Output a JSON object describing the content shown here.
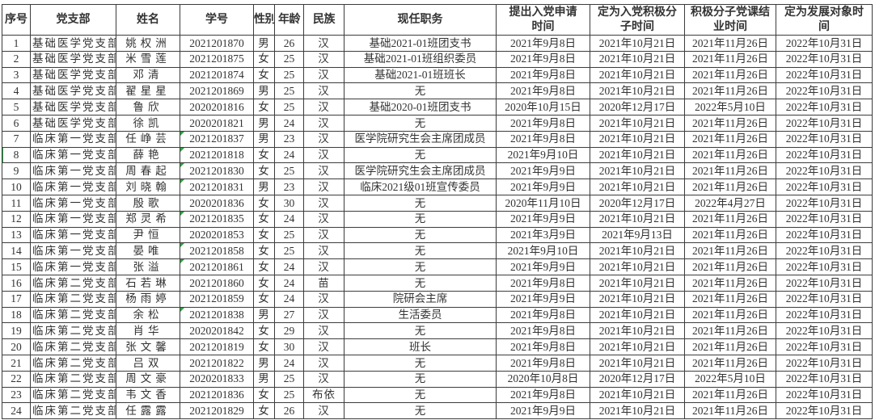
{
  "colors": {
    "border": "#3c3c3c",
    "text": "#333333",
    "indicator_green": "#2f9e44",
    "background": "#ffffff"
  },
  "table": {
    "columns": [
      {
        "key": "index",
        "label": "序号"
      },
      {
        "key": "branch",
        "label": "党支部"
      },
      {
        "key": "name",
        "label": "姓名"
      },
      {
        "key": "student_id",
        "label": "学号"
      },
      {
        "key": "gender",
        "label": "性别"
      },
      {
        "key": "age",
        "label": "年龄"
      },
      {
        "key": "ethnicity",
        "label": "民族"
      },
      {
        "key": "position",
        "label": "现任职务"
      },
      {
        "key": "apply_date",
        "label": "提出入党申请\n时间"
      },
      {
        "key": "activist_date",
        "label": "定为入党积极分\n子时间"
      },
      {
        "key": "course_date",
        "label": "积极分子党课结\n业时间"
      },
      {
        "key": "candidate_date",
        "label": "定为发展对象时\n间"
      }
    ],
    "rows": [
      [
        "1",
        "基础医学党支部",
        "姚权洲",
        "2021201870",
        "男",
        "26",
        "汉",
        "基础2021-01班团支书",
        "2021年9月8日",
        "2021年10月21日",
        "2021年11月26日",
        "2022年10月31日"
      ],
      [
        "2",
        "基础医学党支部",
        "米雪莲",
        "2021201875",
        "女",
        "25",
        "汉",
        "基础2021-01班组织委员",
        "2021年9月8日",
        "2021年10月21日",
        "2021年11月26日",
        "2022年10月31日"
      ],
      [
        "3",
        "基础医学党支部",
        "邓清",
        "2021201874",
        "女",
        "25",
        "汉",
        "基础2021-01班班长",
        "2021年9月8日",
        "2021年10月21日",
        "2021年11月26日",
        "2022年10月31日"
      ],
      [
        "4",
        "基础医学党支部",
        "翟星星",
        "2021201869",
        "男",
        "25",
        "汉",
        "无",
        "2021年9月8日",
        "2021年10月21日",
        "2021年11月26日",
        "2022年10月31日"
      ],
      [
        "5",
        "基础医学党支部",
        "鲁欣",
        "2020201816",
        "女",
        "25",
        "汉",
        "基础2020-01班团支书",
        "2020年10月15日",
        "2020年12月17日",
        "2022年5月10日",
        "2022年10月31日"
      ],
      [
        "6",
        "基础医学党支部",
        "徐凯",
        "2020201821",
        "男",
        "24",
        "汉",
        "无",
        "2021年9月8日",
        "2021年10月21日",
        "2021年11月26日",
        "2022年10月31日"
      ],
      [
        "7",
        "临床第一党支部",
        "任峥芸",
        "2021201837",
        "男",
        "23",
        "汉",
        "医学院研究生会主席团成员",
        "2021年9月8日",
        "2021年10月21日",
        "2021年11月26日",
        "2022年10月31日"
      ],
      [
        "8",
        "临床第一党支部",
        "薛艳",
        "2021201818",
        "女",
        "24",
        "汉",
        "无",
        "2021年9月10日",
        "2021年10月21日",
        "2021年11月26日",
        "2022年10月31日"
      ],
      [
        "9",
        "临床第一党支部",
        "周春起",
        "2021201830",
        "女",
        "25",
        "汉",
        "医学院研究生会主席团成员",
        "2021年9月9日",
        "2021年10月21日",
        "2021年11月26日",
        "2022年10月31日"
      ],
      [
        "10",
        "临床第一党支部",
        "刘晓翰",
        "2021201831",
        "男",
        "23",
        "汉",
        "临床2021级01班宣传委员",
        "2021年9月9日",
        "2021年10月21日",
        "2021年11月26日",
        "2022年10月31日"
      ],
      [
        "11",
        "临床第一党支部",
        "殷歌",
        "2020201836",
        "女",
        "30",
        "汉",
        "无",
        "2020年11月10日",
        "2020年12月17日",
        "2022年4月27日",
        "2022年10月31日"
      ],
      [
        "12",
        "临床第一党支部",
        "郑灵希",
        "2021201835",
        "女",
        "24",
        "汉",
        "无",
        "2021年9月9日",
        "2021年10月21日",
        "2021年11月26日",
        "2022年10月31日"
      ],
      [
        "13",
        "临床第一党支部",
        "尹恒",
        "2020201853",
        "女",
        "25",
        "汉",
        "无",
        "2021年3月9日",
        "2021年9月13日",
        "2021年11月26日",
        "2022年10月31日"
      ],
      [
        "14",
        "临床第一党支部",
        "晏唯",
        "2021201858",
        "女",
        "25",
        "汉",
        "无",
        "2021年9月10日",
        "2021年10月21日",
        "2021年11月26日",
        "2022年10月31日"
      ],
      [
        "15",
        "临床第一党支部",
        "张溢",
        "2021201861",
        "女",
        "24",
        "汉",
        "无",
        "2021年9月9日",
        "2021年10月21日",
        "2021年11月26日",
        "2022年10月31日"
      ],
      [
        "16",
        "临床第二党支部",
        "石若琳",
        "2021201860",
        "女",
        "24",
        "苗",
        "无",
        "2021年9月8日",
        "2021年10月21日",
        "2021年11月26日",
        "2022年10月31日"
      ],
      [
        "17",
        "临床第二党支部",
        "杨雨婷",
        "2021201859",
        "女",
        "24",
        "汉",
        "院研会主席",
        "2021年9月9日",
        "2021年10月21日",
        "2021年11月26日",
        "2022年10月31日"
      ],
      [
        "18",
        "临床第二党支部",
        "余松",
        "2021201838",
        "男",
        "27",
        "汉",
        "生活委员",
        "2021年9月8日",
        "2021年10月21日",
        "2021年11月26日",
        "2022年10月31日"
      ],
      [
        "19",
        "临床第二党支部",
        "肖华",
        "2020201842",
        "女",
        "29",
        "汉",
        "无",
        "2021年9月8日",
        "2021年10月21日",
        "2021年11月26日",
        "2022年10月31日"
      ],
      [
        "20",
        "临床第二党支部",
        "张文馨",
        "2021201819",
        "女",
        "30",
        "汉",
        "班长",
        "2021年9月8日",
        "2021年10月21日",
        "2021年11月26日",
        "2022年10月31日"
      ],
      [
        "21",
        "临床第二党支部",
        "吕双",
        "2021201822",
        "男",
        "24",
        "汉",
        "无",
        "2021年9月8日",
        "2021年10月21日",
        "2021年11月26日",
        "2022年10月31日"
      ],
      [
        "22",
        "临床第二党支部",
        "周文豪",
        "2020201833",
        "男",
        "25",
        "汉",
        "无",
        "2020年10月8日",
        "2020年12月17日",
        "2022年5月10日",
        "2022年10月31日"
      ],
      [
        "23",
        "临床第二党支部",
        "韦文香",
        "2021201836",
        "女",
        "25",
        "布依",
        "无",
        "2021年9月8日",
        "2021年10月21日",
        "2021年11月26日",
        "2022年10月31日"
      ],
      [
        "24",
        "临床第二党支部",
        "任露露",
        "2021201829",
        "女",
        "26",
        "汉",
        "无",
        "2021年9月9日",
        "2021年10月21日",
        "2021年11月26日",
        "2022年10月31日"
      ]
    ],
    "green_triangle_rows": [
      7,
      8,
      9,
      10,
      12,
      14,
      15,
      18
    ],
    "green_left_marker_row": 8
  }
}
